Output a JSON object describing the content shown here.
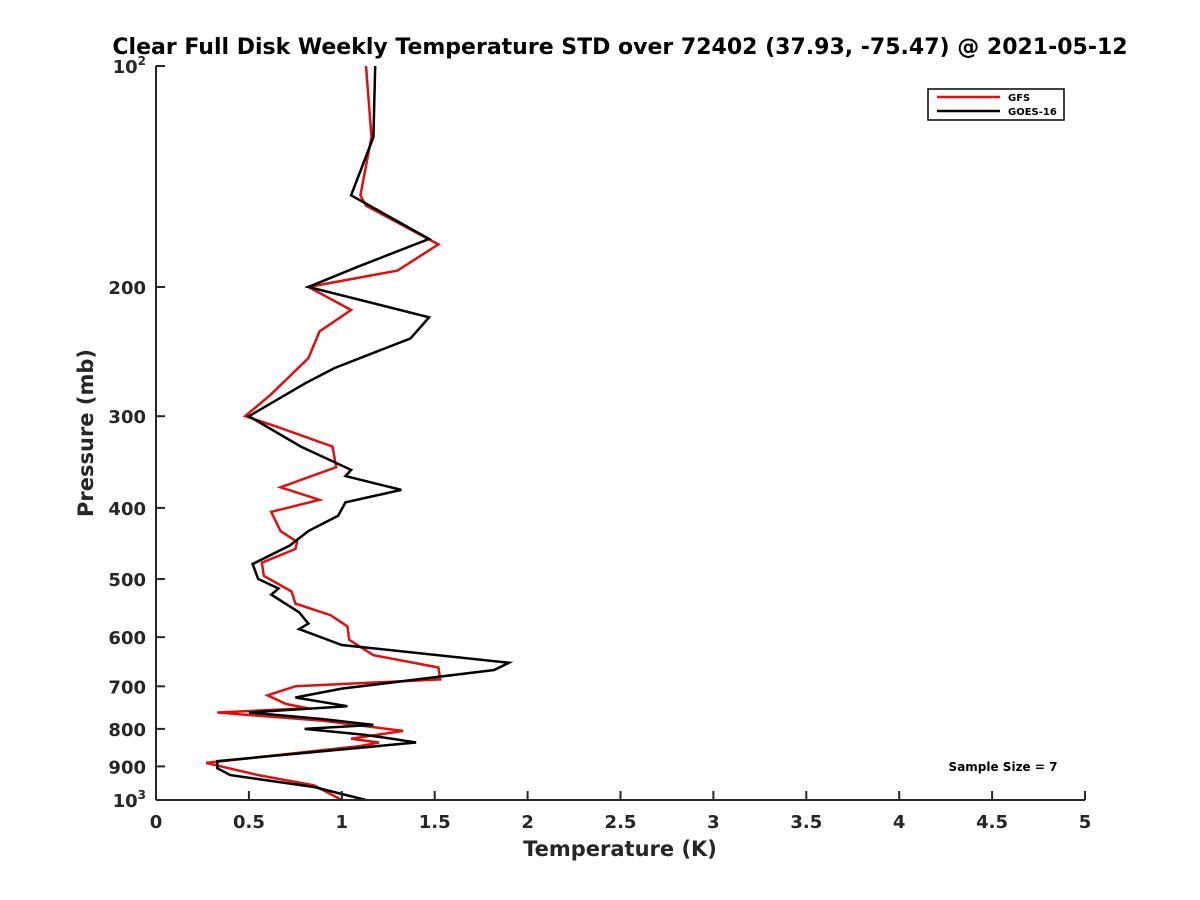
{
  "chart_data": {
    "type": "line",
    "title": "Clear Full Disk Weekly Temperature STD over 72402 (37.93, -75.47) @ 2021-05-12",
    "xlabel": "Temperature (K)",
    "ylabel": "Pressure (mb)",
    "xlim": [
      0,
      5
    ],
    "ylim": [
      100,
      1000
    ],
    "y_scale": "log",
    "y_reversed": true,
    "x_ticks": [
      "0",
      "0.5",
      "1",
      "1.5",
      "2",
      "2.5",
      "3",
      "3.5",
      "4",
      "4.5",
      "5"
    ],
    "y_ticks": [
      {
        "value": 100,
        "base": "10",
        "exp": "2"
      },
      {
        "value": 200,
        "label": "200"
      },
      {
        "value": 300,
        "label": "300"
      },
      {
        "value": 400,
        "label": "400"
      },
      {
        "value": 500,
        "label": "500"
      },
      {
        "value": 600,
        "label": "600"
      },
      {
        "value": 700,
        "label": "700"
      },
      {
        "value": 800,
        "label": "800"
      },
      {
        "value": 900,
        "label": "900"
      },
      {
        "value": 1000,
        "base": "10",
        "exp": "3"
      }
    ],
    "legend": {
      "position": "top-right",
      "entries": [
        "GFS",
        "GOES-16"
      ]
    },
    "annotation": "Sample Size = 7",
    "grid": false,
    "colors": {
      "GFS": "#e01010",
      "GOES-16": "#000000",
      "axis": "#262626"
    },
    "series": [
      {
        "name": "GFS",
        "points": [
          [
            1.13,
            100
          ],
          [
            1.16,
            125
          ],
          [
            1.1,
            150
          ],
          [
            1.13,
            155
          ],
          [
            1.52,
            175
          ],
          [
            1.3,
            190
          ],
          [
            0.82,
            200
          ],
          [
            1.05,
            215
          ],
          [
            0.88,
            230
          ],
          [
            0.82,
            250
          ],
          [
            0.62,
            280
          ],
          [
            0.48,
            300
          ],
          [
            0.65,
            310
          ],
          [
            0.95,
            330
          ],
          [
            0.97,
            352
          ],
          [
            0.67,
            375
          ],
          [
            0.88,
            390
          ],
          [
            0.62,
            405
          ],
          [
            0.67,
            430
          ],
          [
            0.76,
            445
          ],
          [
            0.75,
            455
          ],
          [
            0.57,
            475
          ],
          [
            0.58,
            495
          ],
          [
            0.73,
            520
          ],
          [
            0.75,
            540
          ],
          [
            0.94,
            560
          ],
          [
            1.03,
            580
          ],
          [
            1.04,
            605
          ],
          [
            1.17,
            635
          ],
          [
            1.52,
            660
          ],
          [
            1.53,
            685
          ],
          [
            0.75,
            700
          ],
          [
            0.6,
            720
          ],
          [
            0.7,
            740
          ],
          [
            0.82,
            750
          ],
          [
            0.33,
            760
          ],
          [
            0.9,
            780
          ],
          [
            1.33,
            805
          ],
          [
            1.05,
            825
          ],
          [
            1.2,
            835
          ],
          [
            1.09,
            845
          ],
          [
            0.27,
            890
          ],
          [
            0.55,
            925
          ],
          [
            0.85,
            955
          ],
          [
            1.0,
            1000
          ]
        ]
      },
      {
        "name": "GOES-16",
        "points": [
          [
            1.18,
            100
          ],
          [
            1.17,
            125
          ],
          [
            1.05,
            150
          ],
          [
            1.47,
            172
          ],
          [
            1.08,
            188
          ],
          [
            0.82,
            200
          ],
          [
            1.47,
            220
          ],
          [
            1.37,
            235
          ],
          [
            0.96,
            258
          ],
          [
            0.81,
            270
          ],
          [
            0.5,
            300
          ],
          [
            0.78,
            330
          ],
          [
            1.05,
            355
          ],
          [
            1.02,
            362
          ],
          [
            1.32,
            378
          ],
          [
            1.02,
            393
          ],
          [
            0.98,
            410
          ],
          [
            0.82,
            430
          ],
          [
            0.72,
            450
          ],
          [
            0.52,
            477
          ],
          [
            0.55,
            500
          ],
          [
            0.66,
            515
          ],
          [
            0.62,
            525
          ],
          [
            0.77,
            555
          ],
          [
            0.82,
            575
          ],
          [
            0.77,
            585
          ],
          [
            1.0,
            615
          ],
          [
            1.9,
            650
          ],
          [
            1.82,
            665
          ],
          [
            1.0,
            705
          ],
          [
            0.75,
            725
          ],
          [
            1.03,
            745
          ],
          [
            0.5,
            760
          ],
          [
            0.88,
            775
          ],
          [
            1.17,
            790
          ],
          [
            0.8,
            800
          ],
          [
            1.12,
            815
          ],
          [
            1.27,
            825
          ],
          [
            1.4,
            835
          ],
          [
            0.33,
            885
          ],
          [
            0.33,
            905
          ],
          [
            0.4,
            925
          ],
          [
            0.85,
            960
          ],
          [
            1.13,
            1000
          ]
        ]
      }
    ]
  }
}
